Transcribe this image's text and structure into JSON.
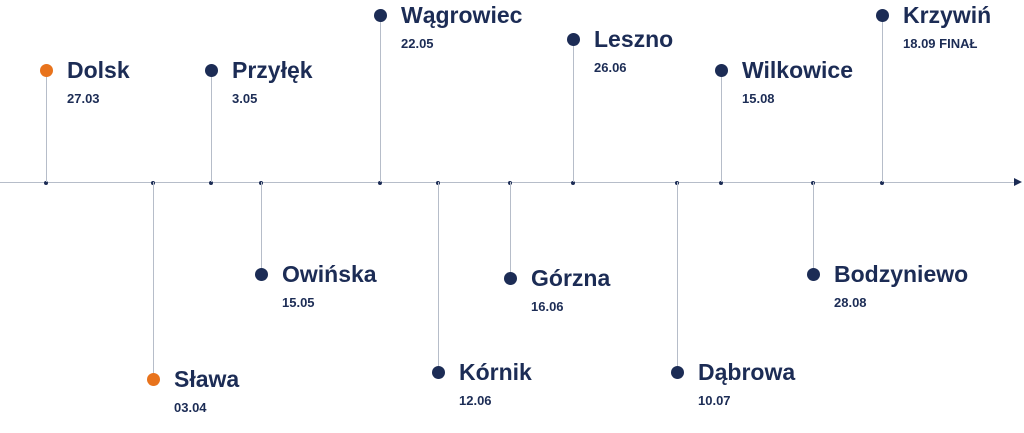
{
  "colors": {
    "navy": "#1c2c55",
    "accent": "#e8731c",
    "line": "#b6bdc9"
  },
  "stops": [
    {
      "name": "Dolsk",
      "date": "27.03",
      "highlight": true
    },
    {
      "name": "Sława",
      "date": "03.04",
      "highlight": true
    },
    {
      "name": "Przyłęk",
      "date": "3.05",
      "highlight": false
    },
    {
      "name": "Owińska",
      "date": "15.05",
      "highlight": false
    },
    {
      "name": "Wągrowiec",
      "date": "22.05",
      "highlight": false
    },
    {
      "name": "Kórnik",
      "date": "12.06",
      "highlight": false
    },
    {
      "name": "Górzna",
      "date": "16.06",
      "highlight": false
    },
    {
      "name": "Leszno",
      "date": "26.06",
      "highlight": false
    },
    {
      "name": "Dąbrowa",
      "date": "10.07",
      "highlight": false
    },
    {
      "name": "Wilkowice",
      "date": "15.08",
      "highlight": false
    },
    {
      "name": "Bodzyniewo",
      "date": "28.08",
      "highlight": false
    },
    {
      "name": "Krzywiń",
      "date": "18.09 FINAŁ",
      "highlight": false
    }
  ]
}
